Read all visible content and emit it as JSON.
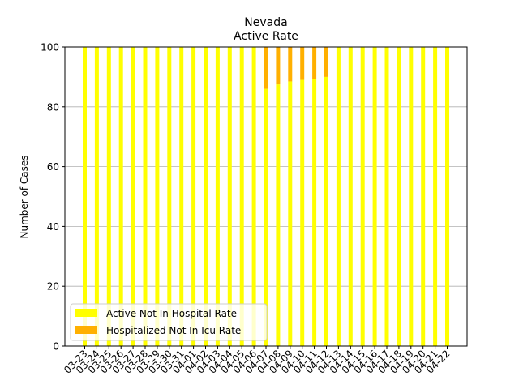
{
  "chart_data": {
    "type": "bar",
    "stacked": true,
    "title": "Nevada",
    "subtitle": "Active Rate",
    "xlabel": "",
    "ylabel": "Number of Cases",
    "ylim": [
      0,
      100
    ],
    "yticks": [
      0,
      20,
      40,
      60,
      80,
      100
    ],
    "grid": "y",
    "legend_position": "bottom-left",
    "categories": [
      "03-23",
      "03-24",
      "03-25",
      "03-26",
      "03-27",
      "03-28",
      "03-29",
      "03-30",
      "03-31",
      "04-01",
      "04-02",
      "04-03",
      "04-04",
      "04-05",
      "04-06",
      "04-07",
      "04-08",
      "04-09",
      "04-10",
      "04-11",
      "04-12",
      "04-13",
      "04-14",
      "04-15",
      "04-16",
      "04-17",
      "04-18",
      "04-19",
      "04-20",
      "04-21",
      "04-22"
    ],
    "series": [
      {
        "name": "Active Not In Hospital Rate",
        "color": "#ffff00",
        "values": [
          100,
          100,
          100,
          100,
          100,
          100,
          100,
          100,
          100,
          100,
          100,
          100,
          100,
          100,
          100,
          86,
          87.5,
          88.5,
          89,
          89.3,
          90,
          100,
          100,
          100,
          100,
          100,
          100,
          100,
          100,
          100,
          100
        ]
      },
      {
        "name": "Hospitalized Not In Icu Rate",
        "color": "#ffb000",
        "values": [
          0,
          0,
          0,
          0,
          0,
          0,
          0,
          0,
          0,
          0,
          0,
          0,
          0,
          0,
          0,
          14,
          12.5,
          11.5,
          11,
          10.7,
          10,
          0,
          0,
          0,
          0,
          0,
          0,
          0,
          0,
          0,
          0
        ]
      }
    ]
  }
}
